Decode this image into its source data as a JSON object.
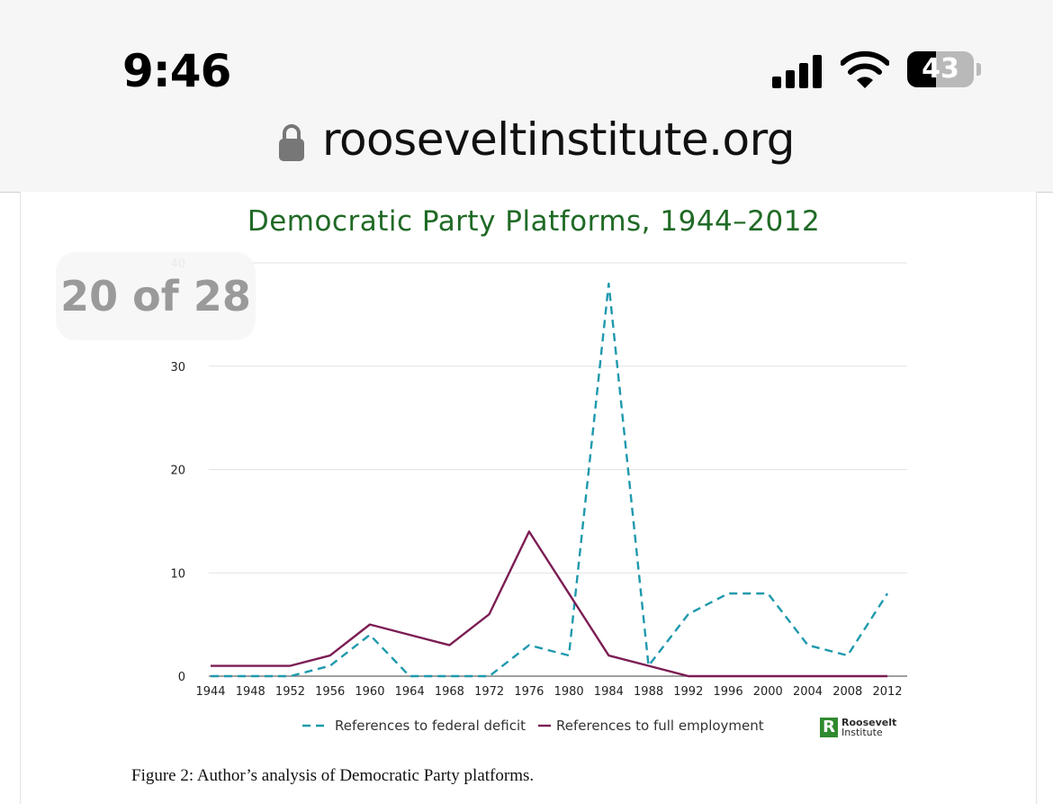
{
  "status_bar": {
    "time": "9:46",
    "battery_percent": "43",
    "battery_level": 0.43,
    "icons": [
      "signal-icon",
      "wifi-icon",
      "battery-icon"
    ]
  },
  "browser": {
    "url": "rooseveltinstitute.org",
    "lock_icon": "lock-icon"
  },
  "gallery_counter": "20 of 28",
  "chart_data": {
    "type": "line",
    "title": "Democratic Party Platforms, 1944–2012",
    "xlabel": "",
    "ylabel": "",
    "categories": [
      "1944",
      "1948",
      "1952",
      "1956",
      "1960",
      "1964",
      "1968",
      "1972",
      "1976",
      "1980",
      "1984",
      "1988",
      "1992",
      "1996",
      "2000",
      "2004",
      "2008",
      "2012"
    ],
    "y_ticks": [
      "0",
      "10",
      "20",
      "30",
      "40"
    ],
    "ylim": [
      0,
      40
    ],
    "grid": "horizontal",
    "legend_position": "bottom",
    "series": [
      {
        "name": "References to federal deficit",
        "style": "dashed",
        "color": "#1f99ad",
        "values": [
          0,
          0,
          0,
          1,
          4,
          0,
          0,
          0,
          3,
          2,
          38,
          1,
          6,
          8,
          8,
          3,
          2,
          8
        ]
      },
      {
        "name": "References to full employment",
        "style": "solid",
        "color": "#7c1d54",
        "values": [
          1,
          1,
          1,
          2,
          5,
          4,
          3,
          6,
          14,
          8,
          2,
          1,
          0,
          0,
          0,
          0,
          0,
          0
        ]
      }
    ]
  },
  "logo": {
    "mark": "R",
    "line1": "Roosevelt",
    "line2": "Institute",
    "color": "#2f8a2f"
  },
  "caption": "Figure 2: Author’s analysis of Democratic Party platforms."
}
